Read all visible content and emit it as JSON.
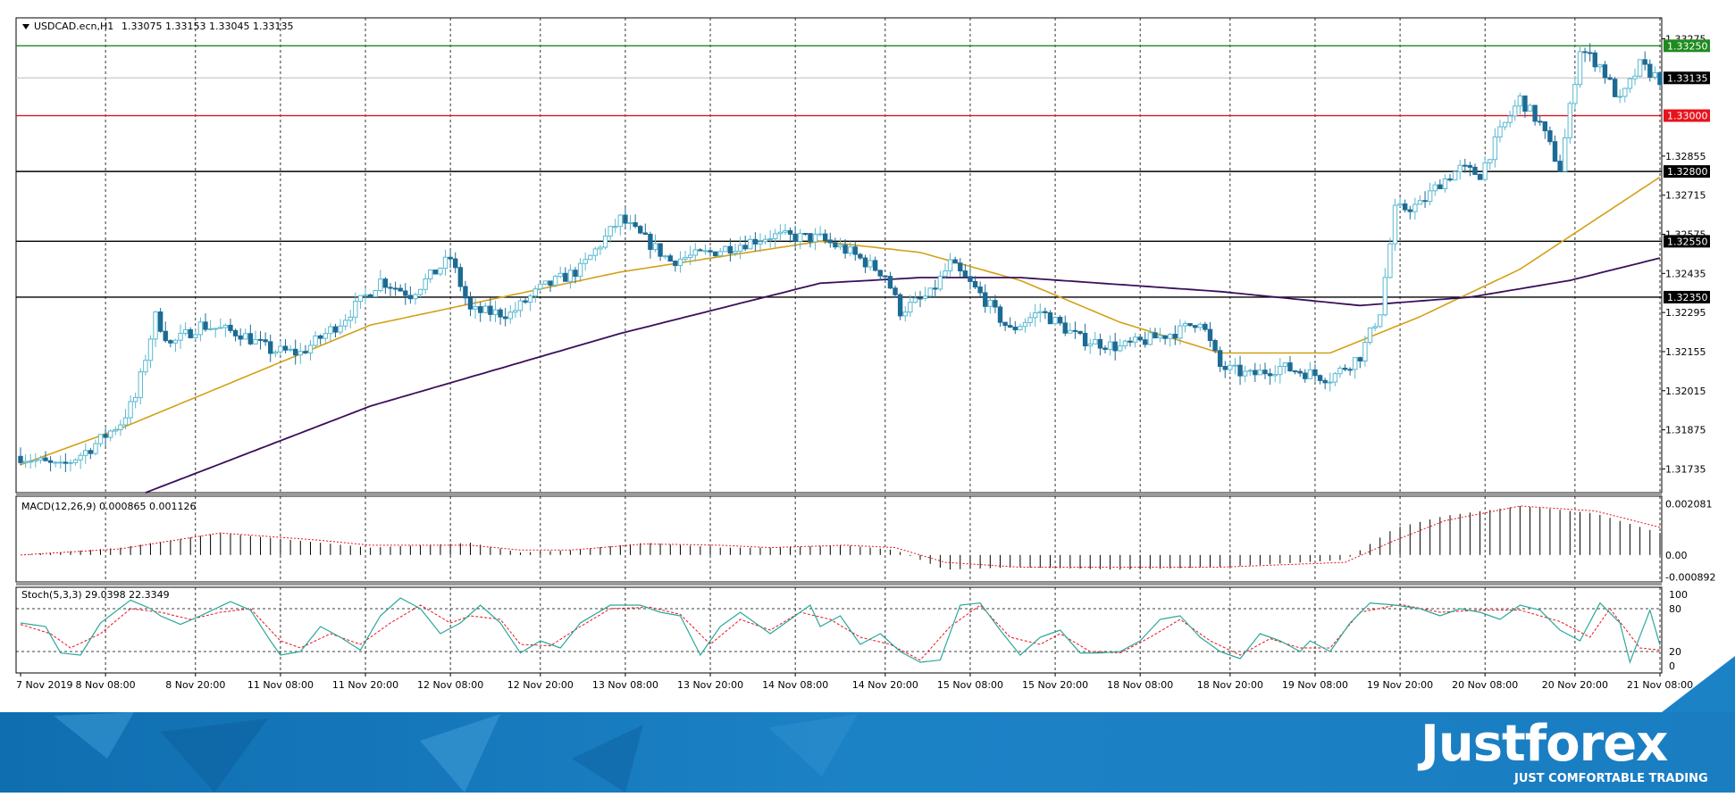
{
  "header": {
    "symbol": "USDCAD.ecn,H1",
    "ohlc": "1.33075 1.33153 1.33045 1.33135"
  },
  "colors": {
    "bullish": "#5bb8d0",
    "bearish": "#1c6b94",
    "ma_fast": "#d4a017",
    "ma_slow": "#3a0f5c",
    "resistance": "#1f8a1f",
    "pivot": "#e8121c",
    "level": "#000000",
    "macd_signal": "#e8121c",
    "stoch_main": "#2ca89a",
    "stoch_signal": "#e8121c",
    "banner": "#1a7dc2"
  },
  "chart_data": [
    {
      "type": "candlestick",
      "symbol": "USDCAD.ecn",
      "timeframe": "H1",
      "last_price": "1.33135",
      "ylim": [
        1.3165,
        1.3335
      ],
      "y_ticks": [
        "1.33275",
        "1.32855",
        "1.32715",
        "1.32575",
        "1.32435",
        "1.32295",
        "1.32155",
        "1.32015",
        "1.31875",
        "1.31735"
      ],
      "x_ticks": [
        "7 Nov 2019",
        "8 Nov 08:00",
        "8 Nov 20:00",
        "11 Nov 08:00",
        "11 Nov 20:00",
        "12 Nov 08:00",
        "12 Nov 20:00",
        "13 Nov 08:00",
        "13 Nov 20:00",
        "14 Nov 08:00",
        "14 Nov 20:00",
        "15 Nov 08:00",
        "15 Nov 20:00",
        "18 Nov 08:00",
        "18 Nov 20:00",
        "19 Nov 08:00",
        "19 Nov 20:00",
        "20 Nov 08:00",
        "20 Nov 20:00",
        "21 Nov 08:00"
      ],
      "horizontal_levels": [
        {
          "price": "1.33250",
          "kind": "resistance"
        },
        {
          "price": "1.33000",
          "kind": "pivot"
        },
        {
          "price": "1.32800",
          "kind": "level"
        },
        {
          "price": "1.32550",
          "kind": "level"
        },
        {
          "price": "1.32350",
          "kind": "level"
        }
      ],
      "close_path": [
        [
          0,
          1.3178
        ],
        [
          8,
          1.3174
        ],
        [
          14,
          1.3181
        ],
        [
          20,
          1.319
        ],
        [
          23,
          1.3199
        ],
        [
          27,
          1.3228
        ],
        [
          30,
          1.3218
        ],
        [
          36,
          1.3225
        ],
        [
          44,
          1.3222
        ],
        [
          50,
          1.3216
        ],
        [
          56,
          1.3215
        ],
        [
          64,
          1.3226
        ],
        [
          72,
          1.3241
        ],
        [
          78,
          1.3236
        ],
        [
          86,
          1.3249
        ],
        [
          90,
          1.323
        ],
        [
          98,
          1.3229
        ],
        [
          104,
          1.3238
        ],
        [
          112,
          1.3245
        ],
        [
          120,
          1.3263
        ],
        [
          130,
          1.3248
        ],
        [
          138,
          1.3251
        ],
        [
          150,
          1.3257
        ],
        [
          160,
          1.3256
        ],
        [
          166,
          1.3251
        ],
        [
          173,
          1.3243
        ],
        [
          176,
          1.323
        ],
        [
          182,
          1.3236
        ],
        [
          186,
          1.3247
        ],
        [
          192,
          1.3236
        ],
        [
          198,
          1.3223
        ],
        [
          204,
          1.323
        ],
        [
          212,
          1.322
        ],
        [
          220,
          1.3217
        ],
        [
          228,
          1.3221
        ],
        [
          232,
          1.3223
        ],
        [
          236,
          1.3227
        ],
        [
          240,
          1.321
        ],
        [
          246,
          1.3207
        ],
        [
          252,
          1.321
        ],
        [
          262,
          1.3206
        ],
        [
          268,
          1.3214
        ],
        [
          272,
          1.323
        ],
        [
          275,
          1.3266
        ],
        [
          280,
          1.3268
        ],
        [
          284,
          1.3276
        ],
        [
          288,
          1.3281
        ],
        [
          292,
          1.3279
        ],
        [
          296,
          1.3294
        ],
        [
          300,
          1.3306
        ],
        [
          304,
          1.3297
        ],
        [
          308,
          1.3281
        ],
        [
          312,
          1.3324
        ],
        [
          316,
          1.3318
        ],
        [
          320,
          1.3305
        ],
        [
          324,
          1.3318
        ],
        [
          328,
          1.3313
        ]
      ],
      "candle_count": 329,
      "indicators": [
        {
          "type": "line",
          "role": "moving average (fast)",
          "path": [
            [
              0,
              1.3175
            ],
            [
              20,
              1.3188
            ],
            [
              70,
              1.3225
            ],
            [
              120,
              1.3244
            ],
            [
              160,
              1.3255
            ],
            [
              180,
              1.3251
            ],
            [
              200,
              1.3241
            ],
            [
              220,
              1.3226
            ],
            [
              240,
              1.3215
            ],
            [
              262,
              1.3215
            ],
            [
              280,
              1.3228
            ],
            [
              300,
              1.3245
            ],
            [
              328,
              1.3278
            ]
          ]
        },
        {
          "type": "line",
          "role": "moving average (slow)",
          "path": [
            [
              25,
              1.3165
            ],
            [
              70,
              1.3196
            ],
            [
              120,
              1.3222
            ],
            [
              160,
              1.324
            ],
            [
              180,
              1.3242
            ],
            [
              200,
              1.3242
            ],
            [
              240,
              1.3237
            ],
            [
              268,
              1.3232
            ],
            [
              290,
              1.3235
            ],
            [
              310,
              1.3241
            ],
            [
              328,
              1.3249
            ]
          ]
        }
      ]
    },
    {
      "type": "histogram",
      "indicator": "MACD",
      "label": "MACD(12,26,9) 0.000865 0.001126",
      "y_ticks": [
        "0.002081",
        "0.00",
        "-0.000892"
      ],
      "ylim": [
        -0.0011,
        0.0024
      ],
      "histogram_path": [
        [
          0,
          0.0
        ],
        [
          20,
          0.0003
        ],
        [
          40,
          0.0009
        ],
        [
          60,
          0.0005
        ],
        [
          70,
          0.0003
        ],
        [
          90,
          0.0005
        ],
        [
          100,
          0.0001
        ],
        [
          110,
          0.0002
        ],
        [
          125,
          0.0005
        ],
        [
          140,
          0.0003
        ],
        [
          150,
          0.0003
        ],
        [
          165,
          0.0004
        ],
        [
          175,
          0.0002
        ],
        [
          185,
          -0.0006
        ],
        [
          200,
          -0.0005
        ],
        [
          220,
          -0.0006
        ],
        [
          240,
          -0.0005
        ],
        [
          265,
          -0.0002
        ],
        [
          275,
          0.0011
        ],
        [
          285,
          0.0016
        ],
        [
          300,
          0.002
        ],
        [
          315,
          0.0017
        ],
        [
          328,
          0.0009
        ]
      ],
      "signal_path": [
        [
          0,
          0.0
        ],
        [
          20,
          0.00025
        ],
        [
          40,
          0.0009
        ],
        [
          60,
          0.0006
        ],
        [
          70,
          0.0004
        ],
        [
          90,
          0.0004
        ],
        [
          100,
          0.0002
        ],
        [
          110,
          0.0002
        ],
        [
          125,
          0.00045
        ],
        [
          140,
          0.0004
        ],
        [
          150,
          0.0003
        ],
        [
          165,
          0.0004
        ],
        [
          175,
          0.0003
        ],
        [
          185,
          -0.0003
        ],
        [
          200,
          -0.0005
        ],
        [
          220,
          -0.0005
        ],
        [
          240,
          -0.0005
        ],
        [
          265,
          -0.0003
        ],
        [
          275,
          0.0006
        ],
        [
          285,
          0.0014
        ],
        [
          300,
          0.002
        ],
        [
          315,
          0.0018
        ],
        [
          328,
          0.00113
        ]
      ]
    },
    {
      "type": "line",
      "indicator": "Stochastic",
      "label": "Stoch(5,3,3) 29.0398 22.3349",
      "y_ticks": [
        "100",
        "80",
        "20",
        "0"
      ],
      "levels": [
        80,
        20
      ],
      "ylim": [
        0,
        100
      ],
      "main_path": [
        [
          0,
          60
        ],
        [
          5,
          55
        ],
        [
          8,
          18
        ],
        [
          12,
          15
        ],
        [
          16,
          60
        ],
        [
          22,
          92
        ],
        [
          26,
          80
        ],
        [
          28,
          70
        ],
        [
          32,
          58
        ],
        [
          36,
          70
        ],
        [
          42,
          90
        ],
        [
          46,
          78
        ],
        [
          50,
          35
        ],
        [
          52,
          15
        ],
        [
          56,
          20
        ],
        [
          60,
          55
        ],
        [
          64,
          40
        ],
        [
          68,
          22
        ],
        [
          72,
          70
        ],
        [
          76,
          95
        ],
        [
          80,
          80
        ],
        [
          84,
          45
        ],
        [
          88,
          60
        ],
        [
          92,
          85
        ],
        [
          96,
          60
        ],
        [
          100,
          18
        ],
        [
          104,
          35
        ],
        [
          108,
          25
        ],
        [
          112,
          60
        ],
        [
          118,
          85
        ],
        [
          124,
          85
        ],
        [
          128,
          75
        ],
        [
          132,
          70
        ],
        [
          136,
          15
        ],
        [
          140,
          55
        ],
        [
          144,
          75
        ],
        [
          148,
          55
        ],
        [
          150,
          45
        ],
        [
          154,
          65
        ],
        [
          158,
          85
        ],
        [
          160,
          55
        ],
        [
          164,
          70
        ],
        [
          168,
          30
        ],
        [
          172,
          45
        ],
        [
          176,
          20
        ],
        [
          180,
          5
        ],
        [
          184,
          8
        ],
        [
          188,
          85
        ],
        [
          192,
          88
        ],
        [
          196,
          50
        ],
        [
          200,
          15
        ],
        [
          204,
          40
        ],
        [
          208,
          50
        ],
        [
          212,
          18
        ],
        [
          216,
          18
        ],
        [
          220,
          20
        ],
        [
          224,
          35
        ],
        [
          228,
          65
        ],
        [
          232,
          70
        ],
        [
          236,
          40
        ],
        [
          240,
          20
        ],
        [
          244,
          10
        ],
        [
          248,
          45
        ],
        [
          252,
          35
        ],
        [
          256,
          20
        ],
        [
          258,
          35
        ],
        [
          262,
          20
        ],
        [
          266,
          60
        ],
        [
          270,
          88
        ],
        [
          275,
          85
        ],
        [
          280,
          80
        ],
        [
          284,
          70
        ],
        [
          288,
          80
        ],
        [
          292,
          75
        ],
        [
          296,
          65
        ],
        [
          300,
          85
        ],
        [
          304,
          78
        ],
        [
          308,
          50
        ],
        [
          312,
          35
        ],
        [
          316,
          88
        ],
        [
          320,
          60
        ],
        [
          322,
          5
        ],
        [
          326,
          78
        ],
        [
          328,
          29
        ]
      ],
      "signal_path": [
        [
          0,
          58
        ],
        [
          6,
          45
        ],
        [
          10,
          25
        ],
        [
          16,
          45
        ],
        [
          22,
          80
        ],
        [
          28,
          75
        ],
        [
          34,
          65
        ],
        [
          40,
          75
        ],
        [
          46,
          80
        ],
        [
          52,
          35
        ],
        [
          56,
          25
        ],
        [
          62,
          45
        ],
        [
          68,
          30
        ],
        [
          74,
          60
        ],
        [
          80,
          85
        ],
        [
          86,
          60
        ],
        [
          90,
          70
        ],
        [
          96,
          65
        ],
        [
          100,
          30
        ],
        [
          106,
          28
        ],
        [
          112,
          55
        ],
        [
          118,
          80
        ],
        [
          126,
          82
        ],
        [
          132,
          72
        ],
        [
          138,
          30
        ],
        [
          144,
          65
        ],
        [
          150,
          50
        ],
        [
          156,
          75
        ],
        [
          162,
          65
        ],
        [
          168,
          40
        ],
        [
          174,
          30
        ],
        [
          180,
          8
        ],
        [
          186,
          55
        ],
        [
          192,
          85
        ],
        [
          198,
          40
        ],
        [
          204,
          30
        ],
        [
          208,
          45
        ],
        [
          214,
          20
        ],
        [
          220,
          18
        ],
        [
          226,
          40
        ],
        [
          232,
          65
        ],
        [
          238,
          35
        ],
        [
          244,
          15
        ],
        [
          250,
          38
        ],
        [
          256,
          25
        ],
        [
          262,
          25
        ],
        [
          268,
          75
        ],
        [
          276,
          86
        ],
        [
          284,
          75
        ],
        [
          292,
          78
        ],
        [
          300,
          78
        ],
        [
          308,
          62
        ],
        [
          314,
          40
        ],
        [
          318,
          80
        ],
        [
          324,
          25
        ],
        [
          328,
          22
        ]
      ]
    }
  ],
  "branding": {
    "logo": "Justforex",
    "tagline": "JUST COMFORTABLE TRADING"
  }
}
